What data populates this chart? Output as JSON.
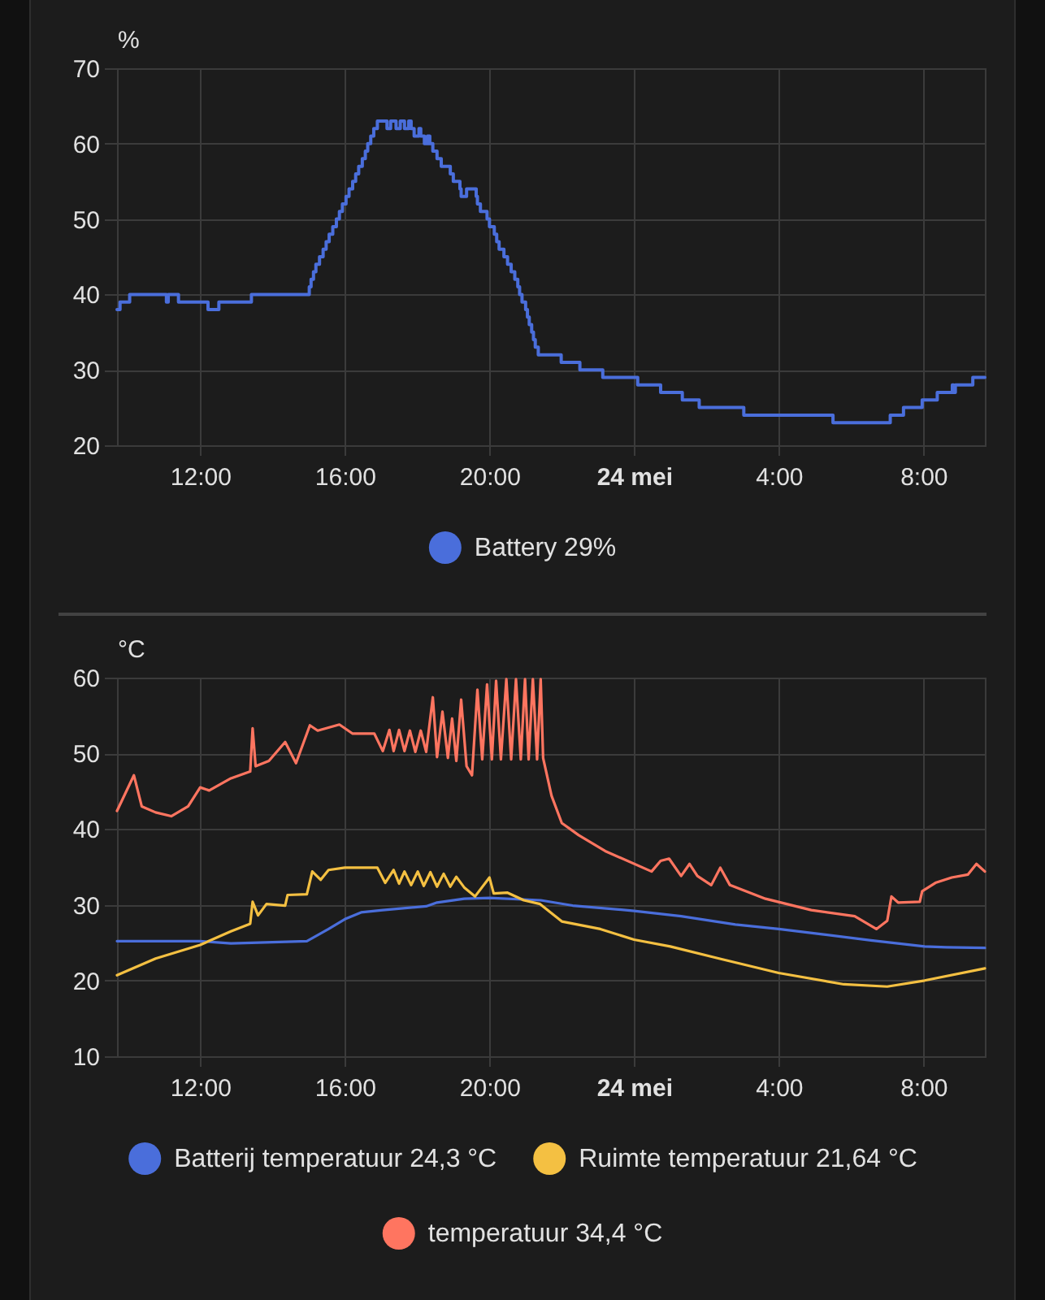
{
  "chart_data": [
    {
      "type": "step",
      "ylabel": "%",
      "series": [
        {
          "name": "Battery 29%",
          "color": "#4a6edb",
          "x": [
            "--05-23T09:42",
            "--05-23T09:47",
            "--05-23T10:03",
            "--05-23T11:04",
            "--05-23T11:07",
            "--05-23T11:24",
            "--05-23T12:13",
            "--05-23T12:31",
            "--05-23T13:25",
            "--05-23T15:01",
            "--05-23T15:04",
            "--05-23T15:08",
            "--05-23T15:12",
            "--05-23T15:18",
            "--05-23T15:24",
            "--05-23T15:29",
            "--05-23T15:34",
            "--05-23T15:40",
            "--05-23T15:46",
            "--05-23T15:51",
            "--05-23T15:56",
            "--05-23T16:02",
            "--05-23T16:07",
            "--05-23T16:13",
            "--05-23T16:18",
            "--05-23T16:23",
            "--05-23T16:29",
            "--05-23T16:34",
            "--05-23T16:38",
            "--05-23T16:43",
            "--05-23T16:48",
            "--05-23T16:54",
            "--05-23T17:10",
            "--05-23T17:16",
            "--05-23T17:25",
            "--05-23T17:32",
            "--05-23T17:39",
            "--05-23T17:46",
            "--05-23T17:50",
            "--05-23T17:55",
            "--05-23T18:03",
            "--05-23T18:06",
            "--05-23T18:12",
            "--05-23T18:17",
            "--05-23T18:21",
            "--05-23T18:26",
            "--05-23T18:33",
            "--05-23T18:40",
            "--05-23T18:55",
            "--05-23T19:00",
            "--05-23T19:11",
            "--05-23T19:13",
            "--05-23T19:22",
            "--05-23T19:38",
            "--05-23T19:40",
            "--05-23T19:45",
            "--05-23T19:56",
            "--05-23T20:00",
            "--05-23T20:08",
            "--05-23T20:12",
            "--05-23T20:16",
            "--05-23T20:24",
            "--05-23T20:30",
            "--05-23T20:36",
            "--05-23T20:42",
            "--05-23T20:47",
            "--05-23T20:50",
            "--05-23T20:54",
            "--05-23T21:00",
            "--05-23T21:03",
            "--05-23T21:06",
            "--05-23T21:10",
            "--05-23T21:13",
            "--05-23T21:16",
            "--05-23T21:21",
            "--05-23T21:59",
            "--05-23T22:30",
            "--05-23T23:08",
            "--05-24T00:06",
            "--05-24T00:44",
            "--05-24T01:20",
            "--05-24T01:48",
            "--05-24T03:02",
            "--05-24T05:30",
            "--05-24T07:05",
            "--05-24T07:27",
            "--05-24T07:58",
            "--05-24T08:23",
            "--05-24T08:48",
            "--05-24T08:50",
            "--05-24T08:53",
            "--05-24T09:22",
            "--05-24T09:42"
          ],
          "values": [
            38,
            39,
            40,
            39,
            40,
            39,
            38,
            39,
            40,
            41,
            42,
            43,
            44,
            45,
            46,
            47,
            48,
            49,
            50,
            51,
            52,
            53,
            54,
            55,
            56,
            57,
            58,
            59,
            60,
            61,
            62,
            63,
            62,
            63,
            62,
            63,
            62,
            63,
            62,
            61,
            62,
            61,
            60,
            61,
            60,
            59,
            58,
            57,
            56,
            55,
            54,
            53,
            54,
            53,
            52,
            51,
            50,
            49,
            48,
            47,
            46,
            45,
            44,
            43,
            42,
            41,
            40,
            39,
            38,
            37,
            36,
            35,
            34,
            33,
            32,
            31,
            30,
            29,
            28,
            27,
            26,
            25,
            24,
            23,
            24,
            25,
            26,
            27,
            28,
            27,
            28,
            29,
            29
          ]
        }
      ],
      "xlim": [
        "--05-23T09:42",
        "--05-24T09:42"
      ],
      "xticks": [
        {
          "value": "--05-23T12:00",
          "label": "12:00"
        },
        {
          "value": "--05-23T16:00",
          "label": "16:00"
        },
        {
          "value": "--05-23T20:00",
          "label": "20:00"
        },
        {
          "value": "--05-24T00:00",
          "label": "24 mei"
        },
        {
          "value": "--05-24T04:00",
          "label": "4:00"
        },
        {
          "value": "--05-24T08:00",
          "label": "8:00"
        }
      ],
      "ylim": [
        20,
        70
      ],
      "yticks": [
        20,
        30,
        40,
        50,
        60,
        70
      ],
      "grid": true,
      "legend": "bottom"
    },
    {
      "type": "line",
      "ylabel": "°C",
      "series": [
        {
          "name": "Batterij temperatuur 24,3 °C",
          "color": "#4a6edb",
          "x": [
            "--05-23T09:42",
            "--05-23T12:00",
            "--05-23T12:51",
            "--05-23T14:57",
            "--05-23T15:33",
            "--05-23T16:00",
            "--05-23T16:27",
            "--05-23T17:03",
            "--05-23T18:15",
            "--05-23T18:33",
            "--05-23T19:18",
            "--05-23T20:00",
            "--05-23T21:25",
            "--05-23T22:18",
            "--05-24T00:00",
            "--05-24T01:18",
            "--05-24T02:48",
            "--05-24T04:00",
            "--05-24T05:12",
            "--05-24T06:33",
            "--05-24T08:02",
            "--05-24T08:38",
            "--05-24T09:42"
          ],
          "values": [
            25.2,
            25.2,
            24.9,
            25.2,
            26.8,
            28.1,
            29,
            29.3,
            29.8,
            30.3,
            30.8,
            30.9,
            30.6,
            29.9,
            29.2,
            28.5,
            27.4,
            26.8,
            26.1,
            25.3,
            24.5,
            24.4,
            24.3
          ]
        },
        {
          "name": "Ruimte temperatuur 21,64 °C",
          "color": "#f4c042",
          "x": [
            "--05-23T09:42",
            "--05-23T10:46",
            "--05-23T12:00",
            "--05-23T12:51",
            "--05-23T13:23",
            "--05-23T13:27",
            "--05-23T13:36",
            "--05-23T13:50",
            "--05-23T14:21",
            "--05-23T14:25",
            "--05-23T14:57",
            "--05-23T15:06",
            "--05-23T15:20",
            "--05-23T15:33",
            "--05-23T16:00",
            "--05-23T16:54",
            "--05-23T17:07",
            "--05-23T17:21",
            "--05-23T17:30",
            "--05-23T17:39",
            "--05-23T17:50",
            "--05-23T18:01",
            "--05-23T18:11",
            "--05-23T18:22",
            "--05-23T18:33",
            "--05-23T18:44",
            "--05-23T18:55",
            "--05-23T19:05",
            "--05-23T19:18",
            "--05-23T19:36",
            "--05-23T20:00",
            "--05-23T20:07",
            "--05-23T20:30",
            "--05-23T20:57",
            "--05-23T21:24",
            "--05-23T22:00",
            "--05-23T23:04",
            "--05-24T00:00",
            "--05-24T01:00",
            "--05-24T02:21",
            "--05-24T04:00",
            "--05-24T05:48",
            "--05-24T07:00",
            "--05-24T08:02",
            "--05-24T09:42"
          ],
          "values": [
            20.7,
            22.9,
            24.7,
            26.5,
            27.5,
            30.4,
            28.6,
            30.1,
            29.9,
            31.3,
            31.4,
            34.4,
            33.3,
            34.6,
            34.9,
            34.9,
            32.9,
            34.6,
            32.8,
            34.4,
            32.6,
            34.4,
            32.5,
            34.3,
            32.4,
            34.1,
            32.4,
            33.7,
            32.3,
            31.1,
            33.6,
            31.5,
            31.6,
            30.6,
            30.1,
            27.8,
            26.8,
            25.4,
            24.5,
            22.9,
            21,
            19.5,
            19.2,
            20,
            21.6
          ]
        },
        {
          "name": "temperatuur 34,4 °C",
          "color": "#ff7560",
          "x": [
            "--05-23T09:42",
            "--05-23T10:10",
            "--05-23T10:23",
            "--05-23T10:46",
            "--05-23T11:12",
            "--05-23T11:40",
            "--05-23T12:00",
            "--05-23T12:15",
            "--05-23T12:51",
            "--05-23T13:23",
            "--05-23T13:27",
            "--05-23T13:32",
            "--05-23T13:54",
            "--05-23T14:21",
            "--05-23T14:39",
            "--05-23T15:02",
            "--05-23T15:15",
            "--05-23T15:51",
            "--05-23T16:13",
            "--05-23T16:49",
            "--05-23T17:03",
            "--05-23T17:14",
            "--05-23T17:21",
            "--05-23T17:30",
            "--05-23T17:39",
            "--05-23T17:48",
            "--05-23T17:57",
            "--05-23T18:06",
            "--05-23T18:15",
            "--05-23T18:26",
            "--05-23T18:33",
            "--05-23T18:42",
            "--05-23T18:51",
            "--05-23T18:58",
            "--05-23T19:05",
            "--05-23T19:13",
            "--05-23T19:22",
            "--05-23T19:31",
            "--05-23T19:40",
            "--05-23T19:48",
            "--05-23T19:56",
            "--05-23T20:04",
            "--05-23T20:11",
            "--05-23T20:19",
            "--05-23T20:28",
            "--05-23T20:36",
            "--05-23T20:44",
            "--05-23T20:52",
            "--05-23T20:59",
            "--05-23T21:05",
            "--05-23T21:12",
            "--05-23T21:19",
            "--05-23T21:25",
            "--05-23T21:29",
            "--05-23T21:43",
            "--05-23T22:00",
            "--05-23T22:28",
            "--05-23T23:12",
            "--05-24T00:29",
            "--05-24T00:44",
            "--05-24T00:58",
            "--05-24T01:18",
            "--05-24T01:32",
            "--05-24T01:45",
            "--05-24T02:08",
            "--05-24T02:23",
            "--05-24T02:39",
            "--05-24T03:38",
            "--05-24T04:54",
            "--05-24T06:06",
            "--05-24T06:42",
            "--05-24T07:00",
            "--05-24T07:07",
            "--05-24T07:18",
            "--05-24T07:54",
            "--05-24T07:58",
            "--05-24T08:20",
            "--05-24T08:47",
            "--05-24T09:14",
            "--05-24T09:28",
            "--05-24T09:42"
          ],
          "values": [
            42.4,
            47.1,
            43,
            42.2,
            41.7,
            43,
            45.5,
            45.1,
            46.7,
            47.6,
            53.3,
            48.3,
            49,
            51.5,
            48.7,
            53.7,
            53,
            53.8,
            52.6,
            52.6,
            50.3,
            53.1,
            50.3,
            53.1,
            50.3,
            53,
            50.2,
            53,
            50.2,
            57.4,
            49.5,
            55.5,
            49.4,
            54.6,
            49,
            57.1,
            48.3,
            47.1,
            58.4,
            49.2,
            59.1,
            49.2,
            59.6,
            49.2,
            59.8,
            49.2,
            59.8,
            49.2,
            59.8,
            49.2,
            59.8,
            49.2,
            59.8,
            49.4,
            44.4,
            40.8,
            39.2,
            37.1,
            34.4,
            35.8,
            36.1,
            33.8,
            35.4,
            33.8,
            32.6,
            34.9,
            32.6,
            30.8,
            29.3,
            28.5,
            26.8,
            27.9,
            31.1,
            30.3,
            30.4,
            31.8,
            32.9,
            33.6,
            34,
            35.4,
            34.4
          ]
        }
      ],
      "xlim": [
        "--05-23T09:42",
        "--05-24T09:42"
      ],
      "xticks": [
        {
          "value": "--05-23T12:00",
          "label": "12:00"
        },
        {
          "value": "--05-23T16:00",
          "label": "16:00"
        },
        {
          "value": "--05-23T20:00",
          "label": "20:00"
        },
        {
          "value": "--05-24T00:00",
          "label": "24 mei"
        },
        {
          "value": "--05-24T04:00",
          "label": "4:00"
        },
        {
          "value": "--05-24T08:00",
          "label": "8:00"
        }
      ],
      "ylim": [
        10,
        60
      ],
      "yticks": [
        10,
        20,
        30,
        40,
        50,
        60
      ],
      "grid": true,
      "legend": "bottom"
    }
  ]
}
